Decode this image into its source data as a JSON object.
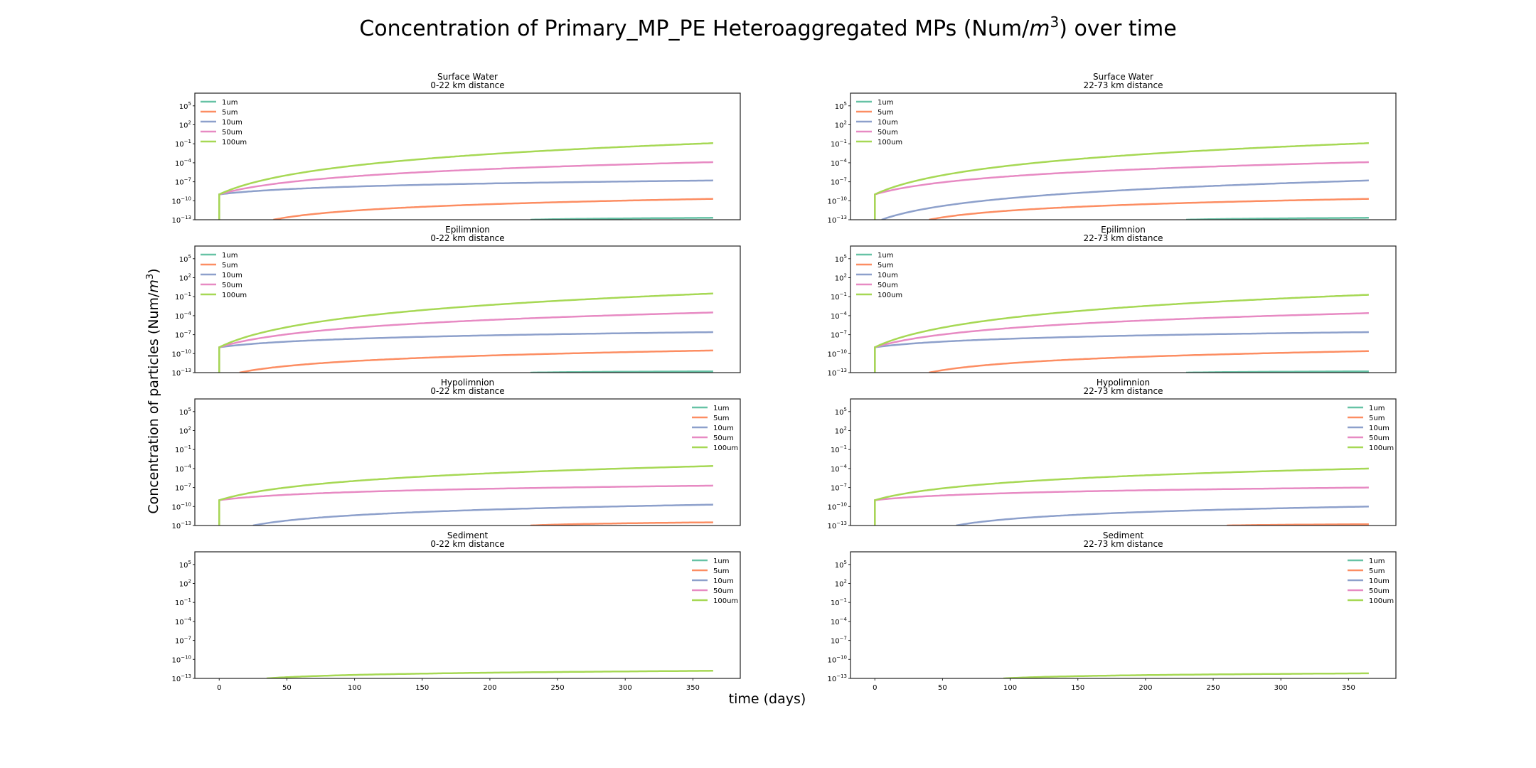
{
  "figure": {
    "title_main": "Concentration of Primary_MP_PE Heteroaggregated MPs (Num/",
    "title_unit": "m",
    "title_exp": "3",
    "title_tail": ") over time",
    "xlabel": "time (days)",
    "ylabel_main": "Concentration of particles (Num/",
    "ylabel_unit": "m",
    "ylabel_exp": "3",
    "ylabel_tail": ")"
  },
  "colors": {
    "1um": "#66c2a5",
    "5um": "#fc8d62",
    "10um": "#8da0cb",
    "50um": "#e78ac3",
    "100um": "#a6d854",
    "axes": "#222222"
  },
  "chart_data": {
    "type": "line",
    "y_scale": "log",
    "xlim": [
      -18,
      385
    ],
    "ylim_log10": [
      -13,
      7
    ],
    "xticks": [
      "0",
      "50",
      "100",
      "150",
      "200",
      "250",
      "300",
      "350"
    ],
    "yticks": [
      {
        "base": "10",
        "exp": "5"
      },
      {
        "base": "10",
        "exp": "2"
      },
      {
        "base": "10",
        "exp": "−1"
      },
      {
        "base": "10",
        "exp": "−4"
      },
      {
        "base": "10",
        "exp": "−7"
      },
      {
        "base": "10",
        "exp": "−10"
      },
      {
        "base": "10",
        "exp": "−13"
      }
    ],
    "series_names": [
      "1um",
      "5um",
      "10um",
      "50um",
      "100um"
    ],
    "panels": [
      {
        "compartment": "Surface Water",
        "distance": "0-22 km distance",
        "legend": "upper-left",
        "series": [
          {
            "name": "1um",
            "start_day": 230,
            "end_log10": -12.7
          },
          {
            "name": "5um",
            "start_day": 40,
            "end_log10": -9.7
          },
          {
            "name": "10um",
            "start_day": 0,
            "end_log10": -6.8
          },
          {
            "name": "50um",
            "start_day": 0,
            "end_log10": -3.9
          },
          {
            "name": "100um",
            "start_day": 0,
            "end_log10": -0.9
          }
        ]
      },
      {
        "compartment": "Surface Water",
        "distance": "22-73 km distance",
        "legend": "upper-left",
        "series": [
          {
            "name": "1um",
            "start_day": 230,
            "end_log10": -12.7
          },
          {
            "name": "5um",
            "start_day": 40,
            "end_log10": -9.7
          },
          {
            "name": "10um",
            "start_day": 5,
            "end_log10": -6.8
          },
          {
            "name": "50um",
            "start_day": 0,
            "end_log10": -3.9
          },
          {
            "name": "100um",
            "start_day": 0,
            "end_log10": -0.9
          }
        ]
      },
      {
        "compartment": "Epilimnion",
        "distance": "0-22 km distance",
        "legend": "upper-left",
        "series": [
          {
            "name": "1um",
            "start_day": 230,
            "end_log10": -12.8
          },
          {
            "name": "5um",
            "start_day": 15,
            "end_log10": -9.5
          },
          {
            "name": "10um",
            "start_day": 0,
            "end_log10": -6.6
          },
          {
            "name": "50um",
            "start_day": 0,
            "end_log10": -3.5
          },
          {
            "name": "100um",
            "start_day": 0,
            "end_log10": -0.5
          }
        ]
      },
      {
        "compartment": "Epilimnion",
        "distance": "22-73 km distance",
        "legend": "upper-left",
        "series": [
          {
            "name": "1um",
            "start_day": 230,
            "end_log10": -12.8
          },
          {
            "name": "5um",
            "start_day": 40,
            "end_log10": -9.6
          },
          {
            "name": "10um",
            "start_day": 0,
            "end_log10": -6.6
          },
          {
            "name": "50um",
            "start_day": 0,
            "end_log10": -3.6
          },
          {
            "name": "100um",
            "start_day": 0,
            "end_log10": -0.7
          }
        ]
      },
      {
        "compartment": "Hypolimnion",
        "distance": "0-22 km distance",
        "legend": "upper-right",
        "series": [
          {
            "name": "5um",
            "start_day": 230,
            "end_log10": -12.5
          },
          {
            "name": "10um",
            "start_day": 25,
            "end_log10": -9.7
          },
          {
            "name": "50um",
            "start_day": 0,
            "end_log10": -6.7
          },
          {
            "name": "100um",
            "start_day": 0,
            "end_log10": -3.6
          }
        ]
      },
      {
        "compartment": "Hypolimnion",
        "distance": "22-73 km distance",
        "legend": "upper-right",
        "series": [
          {
            "name": "5um",
            "start_day": 260,
            "end_log10": -12.8
          },
          {
            "name": "10um",
            "start_day": 60,
            "end_log10": -10.0
          },
          {
            "name": "50um",
            "start_day": 0,
            "end_log10": -7.0
          },
          {
            "name": "100um",
            "start_day": 0,
            "end_log10": -4.0
          }
        ]
      },
      {
        "compartment": "Sediment",
        "distance": "0-22 km distance",
        "legend": "upper-right",
        "series": [
          {
            "name": "100um",
            "start_day": 35,
            "end_log10": -11.8
          }
        ]
      },
      {
        "compartment": "Sediment",
        "distance": "22-73 km distance",
        "legend": "upper-right",
        "series": [
          {
            "name": "100um",
            "start_day": 95,
            "end_log10": -12.2
          }
        ]
      }
    ]
  }
}
